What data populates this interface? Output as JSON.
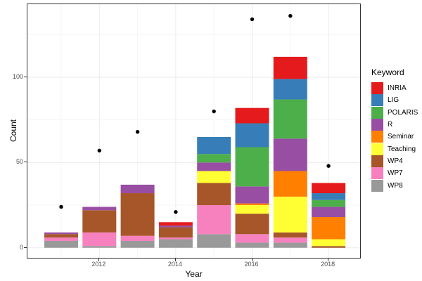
{
  "figure": {
    "y_axis_title": "Count",
    "x_axis_title": "Year",
    "y_ticks": [
      "0",
      "50",
      "100"
    ],
    "x_ticks": [
      "2012",
      "2014",
      "2016",
      "2018"
    ]
  },
  "legend": {
    "title": "Keyword",
    "items": [
      {
        "label": "INRIA",
        "color": "#E41A1C"
      },
      {
        "label": "LIG",
        "color": "#377EB8"
      },
      {
        "label": "POLARIS",
        "color": "#4DAF4A"
      },
      {
        "label": "R",
        "color": "#984EA3"
      },
      {
        "label": "Seminar",
        "color": "#FF7F00"
      },
      {
        "label": "Teaching",
        "color": "#FFFF33"
      },
      {
        "label": "WP4",
        "color": "#A65628"
      },
      {
        "label": "WP7",
        "color": "#F781BF"
      },
      {
        "label": "WP8",
        "color": "#999999"
      }
    ]
  },
  "chart_data": {
    "type": "bar",
    "subtype": "stacked-bars-with-scatter-points",
    "title": "",
    "xlabel": "Year",
    "ylabel": "Count",
    "legend_title": "Keyword",
    "legend_position": "right",
    "grid": true,
    "x": [
      2011,
      2012,
      2013,
      2014,
      2015,
      2016,
      2017,
      2018
    ],
    "xticks": [
      2012,
      2014,
      2016,
      2018
    ],
    "yticks": [
      0,
      50,
      100
    ],
    "yticks_minor": [
      25,
      75,
      125
    ],
    "ylim": [
      -7,
      143
    ],
    "series": [
      {
        "name": "INRIA",
        "color": "#E41A1C",
        "values": [
          0,
          0,
          0,
          2,
          0,
          9,
          13,
          6
        ]
      },
      {
        "name": "LIG",
        "color": "#377EB8",
        "values": [
          0,
          0,
          0,
          0,
          10,
          14,
          12,
          4
        ]
      },
      {
        "name": "POLARIS",
        "color": "#4DAF4A",
        "values": [
          0,
          0,
          0,
          0,
          5,
          23,
          23,
          4
        ]
      },
      {
        "name": "R",
        "color": "#984EA3",
        "values": [
          1,
          2,
          5,
          1,
          5,
          10,
          19,
          6
        ]
      },
      {
        "name": "Seminar",
        "color": "#FF7F00",
        "values": [
          0,
          0,
          0,
          0,
          0,
          1,
          15,
          13
        ]
      },
      {
        "name": "Teaching",
        "color": "#FFFF33",
        "values": [
          0,
          0,
          0,
          0,
          7,
          5,
          21,
          4
        ]
      },
      {
        "name": "WP4",
        "color": "#A65628",
        "values": [
          2,
          13,
          25,
          6,
          13,
          12,
          3,
          1
        ]
      },
      {
        "name": "WP7",
        "color": "#F781BF",
        "values": [
          2,
          8,
          3,
          1,
          17,
          5,
          3,
          0
        ]
      },
      {
        "name": "WP8",
        "color": "#999999",
        "values": [
          4,
          1,
          4,
          5,
          8,
          3,
          3,
          0
        ]
      }
    ],
    "stack_order_bottom_to_top": [
      "WP8",
      "WP7",
      "WP4",
      "Teaching",
      "Seminar",
      "R",
      "POLARIS",
      "LIG",
      "INRIA"
    ],
    "bar_totals": [
      9,
      24,
      37,
      15,
      65,
      82,
      112,
      38
    ],
    "points_series": {
      "name": "total-dots",
      "color": "#000000",
      "values": [
        24,
        57,
        68,
        21,
        80,
        134,
        136,
        48
      ]
    }
  }
}
